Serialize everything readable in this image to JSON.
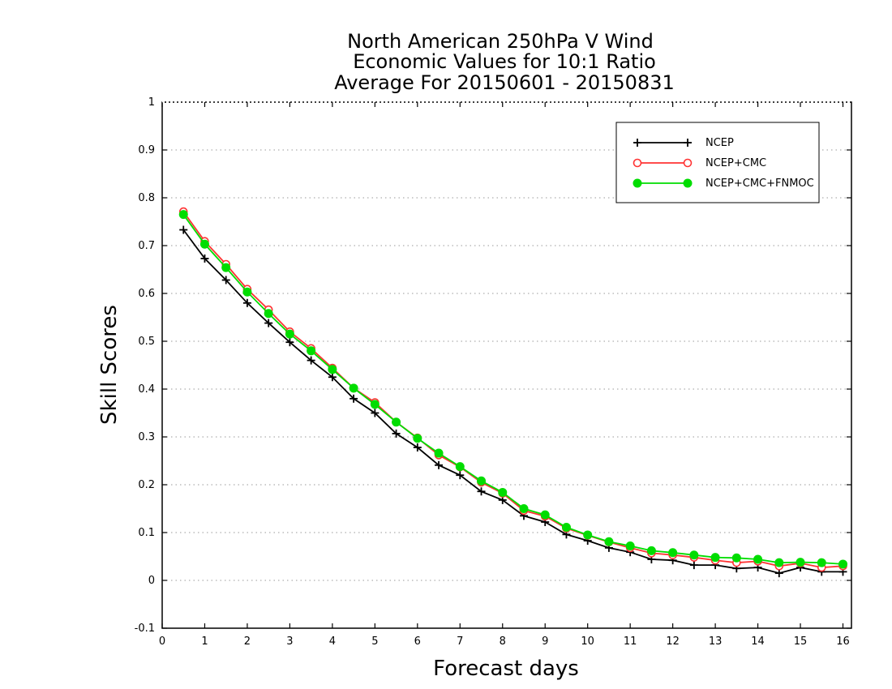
{
  "chart_data": {
    "type": "line",
    "title": [
      "North American 250hPa V Wind",
      "Economic Values for 10:1 Ratio",
      "Average For 20150601 - 20150831"
    ],
    "xlabel": "Forecast days",
    "ylabel": "Skill Scores",
    "xlim": [
      0,
      16.2
    ],
    "ylim": [
      -0.1,
      1
    ],
    "xticks": [
      0,
      1,
      2,
      3,
      4,
      5,
      6,
      7,
      8,
      9,
      10,
      11,
      12,
      13,
      14,
      15,
      16
    ],
    "yticks": [
      -0.1,
      0,
      0.1,
      0.2,
      0.3,
      0.4,
      0.5,
      0.6,
      0.7,
      0.8,
      0.9,
      1
    ],
    "ytick_labels": [
      "-0.1",
      "0",
      "0.1",
      "0.2",
      "0.3",
      "0.4",
      "0.5",
      "0.6",
      "0.7",
      "0.8",
      "0.9",
      "1"
    ],
    "grid": "horizontal dotted",
    "legend_position": "top-right",
    "x": [
      0.5,
      1,
      1.5,
      2,
      2.5,
      3,
      3.5,
      4,
      4.5,
      5,
      5.5,
      6,
      6.5,
      7,
      7.5,
      8,
      8.5,
      9,
      9.5,
      10,
      10.5,
      11,
      11.5,
      12,
      12.5,
      13,
      13.5,
      14,
      14.5,
      15,
      15.5,
      16
    ],
    "series": [
      {
        "name": "NCEP",
        "color": "#000000",
        "marker": "plus",
        "values": [
          0.733,
          0.673,
          0.628,
          0.58,
          0.538,
          0.498,
          0.46,
          0.425,
          0.38,
          0.35,
          0.307,
          0.278,
          0.241,
          0.22,
          0.186,
          0.168,
          0.135,
          0.122,
          0.096,
          0.083,
          0.068,
          0.059,
          0.044,
          0.042,
          0.032,
          0.032,
          0.025,
          0.027,
          0.015,
          0.027,
          0.018,
          0.018
        ]
      },
      {
        "name": "NCEP+CMC",
        "color": "#ff3333",
        "marker": "open-circle",
        "values": [
          0.771,
          0.709,
          0.661,
          0.609,
          0.566,
          0.52,
          0.485,
          0.444,
          0.402,
          0.372,
          0.331,
          0.298,
          0.262,
          0.237,
          0.205,
          0.182,
          0.146,
          0.134,
          0.109,
          0.094,
          0.08,
          0.068,
          0.057,
          0.053,
          0.048,
          0.042,
          0.037,
          0.04,
          0.03,
          0.036,
          0.027,
          0.03
        ]
      },
      {
        "name": "NCEP+CMC+FNMOC",
        "color": "#00dd00",
        "marker": "filled-circle",
        "values": [
          0.765,
          0.703,
          0.654,
          0.603,
          0.558,
          0.515,
          0.48,
          0.441,
          0.402,
          0.368,
          0.331,
          0.297,
          0.266,
          0.238,
          0.208,
          0.184,
          0.15,
          0.137,
          0.111,
          0.095,
          0.081,
          0.072,
          0.062,
          0.058,
          0.053,
          0.048,
          0.047,
          0.044,
          0.037,
          0.038,
          0.037,
          0.034
        ]
      }
    ]
  }
}
